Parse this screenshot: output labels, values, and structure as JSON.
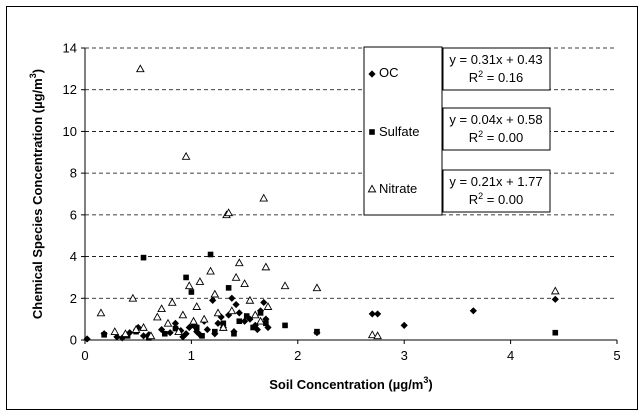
{
  "chart_data": {
    "type": "scatter",
    "xlabel": "Soil Concentration (µg/m",
    "xlabel_sup": "3",
    "xlabel_end": ")",
    "ylabel": "Chemical Species Concentration (µg/m",
    "ylabel_sup": "3",
    "ylabel_end": ")",
    "xlim": [
      0,
      5
    ],
    "ylim": [
      0,
      14
    ],
    "xticks": [
      "0",
      "1",
      "2",
      "3",
      "4",
      "5"
    ],
    "yticks": [
      "0",
      "2",
      "4",
      "6",
      "8",
      "10",
      "12",
      "14"
    ],
    "grid": "horizontal dashed",
    "legend_placement": "right",
    "series": [
      {
        "name": "OC",
        "marker": "diamond",
        "color": "#000000",
        "equation": "y = 0.31x + 0.43",
        "r2_base": "R",
        "r2_sup": "2",
        "r2_value": " = 0.16",
        "points": [
          [
            0.02,
            0.05
          ],
          [
            0.18,
            0.3
          ],
          [
            0.3,
            0.15
          ],
          [
            0.35,
            0.1
          ],
          [
            0.42,
            0.35
          ],
          [
            0.5,
            0.6
          ],
          [
            0.55,
            0.2
          ],
          [
            0.6,
            0.25
          ],
          [
            0.72,
            0.5
          ],
          [
            0.8,
            0.35
          ],
          [
            0.85,
            0.8
          ],
          [
            0.9,
            0.45
          ],
          [
            0.92,
            0.15
          ],
          [
            0.95,
            0.3
          ],
          [
            0.98,
            0.6
          ],
          [
            1.02,
            0.7
          ],
          [
            1.05,
            0.4
          ],
          [
            1.08,
            0.25
          ],
          [
            1.12,
            0.9
          ],
          [
            1.15,
            0.5
          ],
          [
            1.2,
            1.9
          ],
          [
            1.22,
            0.3
          ],
          [
            1.25,
            0.8
          ],
          [
            1.28,
            1.1
          ],
          [
            1.3,
            0.6
          ],
          [
            1.35,
            1.2
          ],
          [
            1.38,
            2.0
          ],
          [
            1.4,
            0.4
          ],
          [
            1.42,
            1.7
          ],
          [
            1.45,
            1.3
          ],
          [
            1.5,
            0.9
          ],
          [
            1.55,
            1.0
          ],
          [
            1.6,
            0.7
          ],
          [
            1.62,
            0.5
          ],
          [
            1.65,
            1.4
          ],
          [
            1.68,
            1.8
          ],
          [
            1.7,
            1.0
          ],
          [
            1.72,
            0.6
          ],
          [
            2.18,
            0.35
          ],
          [
            2.7,
            1.25
          ],
          [
            2.75,
            1.25
          ],
          [
            3.0,
            0.7
          ],
          [
            3.65,
            1.4
          ],
          [
            4.42,
            1.95
          ]
        ]
      },
      {
        "name": "Sulfate",
        "marker": "square",
        "color": "#000000",
        "equation": "y = 0.04x + 0.58",
        "r2_base": "R",
        "r2_sup": "2",
        "r2_value": " = 0.00",
        "points": [
          [
            0.18,
            0.25
          ],
          [
            0.4,
            0.2
          ],
          [
            0.48,
            0.4
          ],
          [
            0.55,
            3.95
          ],
          [
            0.6,
            0.1
          ],
          [
            0.75,
            0.3
          ],
          [
            0.85,
            0.55
          ],
          [
            0.95,
            3.0
          ],
          [
            1.0,
            2.3
          ],
          [
            1.05,
            0.6
          ],
          [
            1.1,
            0.2
          ],
          [
            1.18,
            4.1
          ],
          [
            1.22,
            0.4
          ],
          [
            1.3,
            0.8
          ],
          [
            1.35,
            2.5
          ],
          [
            1.4,
            0.3
          ],
          [
            1.45,
            0.9
          ],
          [
            1.52,
            1.15
          ],
          [
            1.58,
            0.6
          ],
          [
            1.65,
            1.3
          ],
          [
            1.7,
            0.8
          ],
          [
            1.88,
            0.7
          ],
          [
            2.18,
            0.4
          ],
          [
            4.42,
            0.35
          ]
        ]
      },
      {
        "name": "Nitrate",
        "marker": "triangle-open",
        "color": "#000000",
        "equation": "y = 0.21x + 1.77",
        "r2_base": "R",
        "r2_sup": "2",
        "r2_value": " = 0.00",
        "points": [
          [
            0.15,
            1.3
          ],
          [
            0.28,
            0.4
          ],
          [
            0.38,
            0.3
          ],
          [
            0.45,
            2.0
          ],
          [
            0.48,
            0.5
          ],
          [
            0.52,
            13.0
          ],
          [
            0.55,
            0.6
          ],
          [
            0.62,
            0.2
          ],
          [
            0.68,
            1.1
          ],
          [
            0.72,
            1.5
          ],
          [
            0.78,
            0.8
          ],
          [
            0.82,
            1.8
          ],
          [
            0.88,
            0.4
          ],
          [
            0.92,
            1.2
          ],
          [
            0.95,
            8.8
          ],
          [
            0.98,
            2.6
          ],
          [
            1.02,
            0.9
          ],
          [
            1.05,
            1.6
          ],
          [
            1.08,
            2.8
          ],
          [
            1.12,
            1.0
          ],
          [
            1.18,
            3.3
          ],
          [
            1.22,
            2.2
          ],
          [
            1.25,
            1.3
          ],
          [
            1.3,
            0.6
          ],
          [
            1.33,
            6.0
          ],
          [
            1.35,
            6.1
          ],
          [
            1.38,
            1.4
          ],
          [
            1.42,
            3.0
          ],
          [
            1.45,
            3.7
          ],
          [
            1.5,
            2.7
          ],
          [
            1.55,
            1.9
          ],
          [
            1.6,
            1.2
          ],
          [
            1.65,
            0.9
          ],
          [
            1.68,
            6.8
          ],
          [
            1.7,
            3.5
          ],
          [
            1.72,
            1.6
          ],
          [
            1.88,
            2.6
          ],
          [
            2.18,
            2.5
          ],
          [
            2.7,
            0.25
          ],
          [
            2.75,
            0.2
          ],
          [
            4.42,
            2.35
          ]
        ]
      }
    ]
  }
}
